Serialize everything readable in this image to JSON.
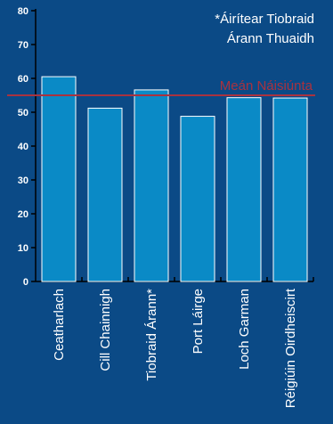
{
  "chart_data": {
    "type": "bar",
    "categories": [
      "Ceatharlach",
      "Cill Chainnigh",
      "Tiobraid Árann*",
      "Port Láirge",
      "Loch Garman",
      "Réigiúin Oirdheiscirt"
    ],
    "values": [
      60.5,
      51.2,
      56.6,
      48.8,
      54.3,
      54.2
    ],
    "ylim": [
      0,
      80
    ],
    "yticks": [
      0,
      10,
      20,
      30,
      40,
      50,
      60,
      70,
      80
    ],
    "grid": false,
    "reference_line": {
      "label": "Meán Náisiúnta",
      "value": 55
    },
    "annotation": {
      "lines": [
        "*Áirítear Tiobraid",
        "Árann Thuaidh"
      ]
    },
    "colors": {
      "background": "#0b4a86",
      "bar_fill": "#0a8ac6",
      "bar_stroke": "#ffffff",
      "reference_line": "#a9323f",
      "axis": "#000000",
      "text": "#ffffff"
    }
  }
}
